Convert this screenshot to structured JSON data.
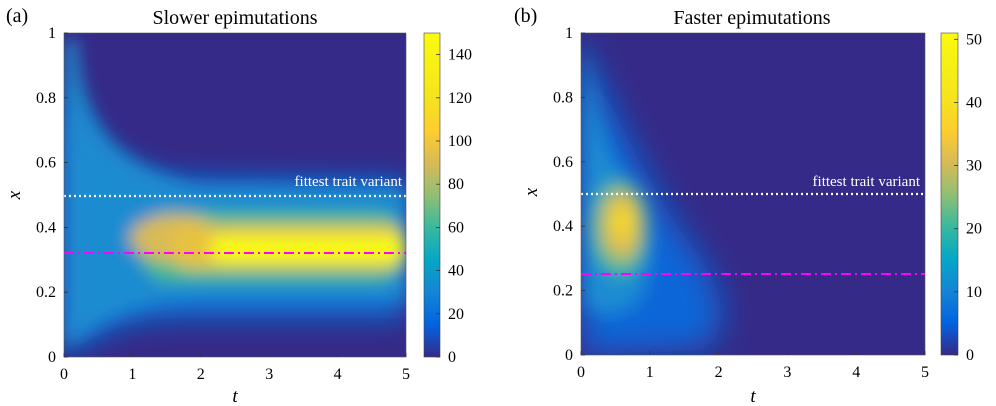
{
  "chart_data": [
    {
      "type": "heatmap",
      "panel_label": "(a)",
      "title": "Slower epimutations",
      "xlabel": "t",
      "ylabel": "x",
      "xlim": [
        0,
        5
      ],
      "ylim": [
        0,
        1
      ],
      "xticks": [
        "0",
        "1",
        "2",
        "3",
        "4",
        "5"
      ],
      "yticks": [
        "0",
        "0.2",
        "0.4",
        "0.6",
        "0.8",
        "1"
      ],
      "colorbar": {
        "min": 0,
        "max": 150,
        "ticks": [
          "0",
          "20",
          "40",
          "60",
          "80",
          "100",
          "120",
          "140"
        ]
      },
      "colormap": "parula",
      "lines": [
        {
          "label": "fittest trait variant",
          "y": 0.5,
          "style": "dotted",
          "color": "#ffffff"
        },
        {
          "label": "",
          "y": 0.32,
          "style": "dash-dot",
          "color": "#ff00ff"
        }
      ],
      "density_peak": {
        "t_center": 3.0,
        "x_center": 0.32,
        "max": 150
      }
    },
    {
      "type": "heatmap",
      "panel_label": "(b)",
      "title": "Faster epimutations",
      "xlabel": "t",
      "ylabel": "x",
      "xlim": [
        0,
        5
      ],
      "ylim": [
        0,
        1
      ],
      "xticks": [
        "0",
        "1",
        "2",
        "3",
        "4",
        "5"
      ],
      "yticks": [
        "0",
        "0.2",
        "0.4",
        "0.6",
        "0.8",
        "1"
      ],
      "colorbar": {
        "min": 0,
        "max": 51,
        "ticks": [
          "0",
          "10",
          "20",
          "30",
          "40",
          "50"
        ]
      },
      "colormap": "parula",
      "lines": [
        {
          "label": "fittest trait variant",
          "y": 0.5,
          "style": "dotted",
          "color": "#ffffff"
        },
        {
          "label": "",
          "y": 0.25,
          "style": "dash-dot",
          "color": "#ff00ff"
        }
      ],
      "density_peak": {
        "t_center": 0.5,
        "x_center": 0.4,
        "max": 51
      }
    }
  ]
}
